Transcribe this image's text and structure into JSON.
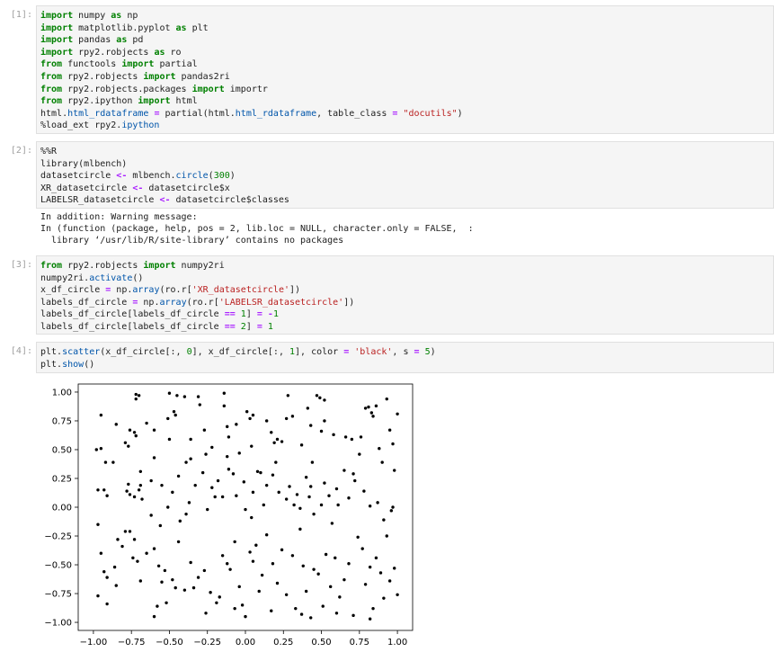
{
  "cells": [
    {
      "prompt": "[1]:",
      "lines": [
        [
          [
            "kw",
            "import"
          ],
          [
            "t",
            " numpy "
          ],
          [
            "kw",
            "as"
          ],
          [
            "t",
            " np"
          ]
        ],
        [
          [
            "kw",
            "import"
          ],
          [
            "t",
            " matplotlib.pyplot "
          ],
          [
            "kw",
            "as"
          ],
          [
            "t",
            " plt"
          ]
        ],
        [
          [
            "kw",
            "import"
          ],
          [
            "t",
            " pandas "
          ],
          [
            "kw",
            "as"
          ],
          [
            "t",
            " pd"
          ]
        ],
        [
          [
            "kw",
            "import"
          ],
          [
            "t",
            " rpy2.robjects "
          ],
          [
            "kw",
            "as"
          ],
          [
            "t",
            " ro"
          ]
        ],
        [
          [
            "kw",
            "from"
          ],
          [
            "t",
            " functools "
          ],
          [
            "kw",
            "import"
          ],
          [
            "t",
            " partial"
          ]
        ],
        [
          [
            "kw",
            "from"
          ],
          [
            "t",
            " rpy2.robjects "
          ],
          [
            "kw",
            "import"
          ],
          [
            "t",
            " pandas2ri"
          ]
        ],
        [
          [
            "kw",
            "from"
          ],
          [
            "t",
            " rpy2.robjects.packages "
          ],
          [
            "kw",
            "import"
          ],
          [
            "t",
            " importr"
          ]
        ],
        [
          [
            "kw",
            "from"
          ],
          [
            "t",
            " rpy2.ipython "
          ],
          [
            "kw",
            "import"
          ],
          [
            "t",
            " html"
          ]
        ],
        [
          [
            "t",
            "html."
          ],
          [
            "fn",
            "html_rdataframe"
          ],
          [
            "t",
            " "
          ],
          [
            "op",
            "="
          ],
          [
            "t",
            " partial(html."
          ],
          [
            "fn",
            "html_rdataframe"
          ],
          [
            "t",
            ", table_class "
          ],
          [
            "op",
            "="
          ],
          [
            "t",
            " "
          ],
          [
            "str",
            "\"docutils\""
          ],
          [
            "t",
            ")"
          ]
        ],
        [
          [
            "t",
            "%load_ext rpy2."
          ],
          [
            "fn",
            "ipython"
          ]
        ]
      ]
    },
    {
      "prompt": "[2]:",
      "lines": [
        [
          [
            "t",
            "%%R"
          ]
        ],
        [
          [
            "t",
            "library(mlbench)"
          ]
        ],
        [
          [
            "t",
            "datasetcircle "
          ],
          [
            "op",
            "<-"
          ],
          [
            "t",
            " mlbench."
          ],
          [
            "fn",
            "circle"
          ],
          [
            "t",
            "("
          ],
          [
            "num",
            "300"
          ],
          [
            "t",
            ")"
          ]
        ],
        [
          [
            "t",
            "XR_datasetcircle "
          ],
          [
            "op",
            "<-"
          ],
          [
            "t",
            " datasetcircle$x"
          ]
        ],
        [
          [
            "t",
            "LABELSR_datasetcircle "
          ],
          [
            "op",
            "<-"
          ],
          [
            "t",
            " datasetcircle$classes"
          ]
        ]
      ],
      "output": [
        "In addition: Warning message:",
        "In (function (package, help, pos = 2, lib.loc = NULL, character.only = FALSE,  :",
        "  library ‘/usr/lib/R/site-library’ contains no packages"
      ]
    },
    {
      "prompt": "[3]:",
      "lines": [
        [
          [
            "kw",
            "from"
          ],
          [
            "t",
            " rpy2.robjects "
          ],
          [
            "kw",
            "import"
          ],
          [
            "t",
            " numpy2ri"
          ]
        ],
        [
          [
            "t",
            "numpy2ri."
          ],
          [
            "fn",
            "activate"
          ],
          [
            "t",
            "()"
          ]
        ],
        [
          [
            "t",
            "x_df_circle "
          ],
          [
            "op",
            "="
          ],
          [
            "t",
            " np."
          ],
          [
            "fn",
            "array"
          ],
          [
            "t",
            "(ro.r["
          ],
          [
            "str",
            "'XR_datasetcircle'"
          ],
          [
            "t",
            "])"
          ]
        ],
        [
          [
            "t",
            "labels_df_circle "
          ],
          [
            "op",
            "="
          ],
          [
            "t",
            " np."
          ],
          [
            "fn",
            "array"
          ],
          [
            "t",
            "(ro.r["
          ],
          [
            "str",
            "'LABELSR_datasetcircle'"
          ],
          [
            "t",
            "])"
          ]
        ],
        [
          [
            "t",
            "labels_df_circle[labels_df_circle "
          ],
          [
            "op",
            "=="
          ],
          [
            "t",
            " "
          ],
          [
            "num",
            "1"
          ],
          [
            "t",
            "] "
          ],
          [
            "op",
            "="
          ],
          [
            "t",
            " "
          ],
          [
            "op",
            "-"
          ],
          [
            "num",
            "1"
          ]
        ],
        [
          [
            "t",
            "labels_df_circle[labels_df_circle "
          ],
          [
            "op",
            "=="
          ],
          [
            "t",
            " "
          ],
          [
            "num",
            "2"
          ],
          [
            "t",
            "] "
          ],
          [
            "op",
            "="
          ],
          [
            "t",
            " "
          ],
          [
            "num",
            "1"
          ]
        ]
      ]
    },
    {
      "prompt": "[4]:",
      "lines": [
        [
          [
            "t",
            "plt."
          ],
          [
            "fn",
            "scatter"
          ],
          [
            "t",
            "(x_df_circle[:, "
          ],
          [
            "num",
            "0"
          ],
          [
            "t",
            "], x_df_circle[:, "
          ],
          [
            "num",
            "1"
          ],
          [
            "t",
            "], color "
          ],
          [
            "op",
            "="
          ],
          [
            "t",
            " "
          ],
          [
            "str",
            "'black'"
          ],
          [
            "t",
            ", s "
          ],
          [
            "op",
            "="
          ],
          [
            "t",
            " "
          ],
          [
            "num",
            "5"
          ],
          [
            "t",
            ")"
          ]
        ],
        [
          [
            "t",
            "plt."
          ],
          [
            "fn",
            "show"
          ],
          [
            "t",
            "()"
          ]
        ]
      ]
    }
  ],
  "chart_data": {
    "type": "scatter",
    "xlim": [
      -1.1,
      1.1
    ],
    "ylim": [
      -1.07,
      1.07
    ],
    "xticks": [
      "−1.00",
      "−0.75",
      "−0.50",
      "−0.25",
      "0.00",
      "0.25",
      "0.50",
      "0.75",
      "1.00"
    ],
    "yticks": [
      "1.00",
      "0.75",
      "0.50",
      "0.25",
      "0.00",
      "−0.25",
      "−0.50",
      "−0.75",
      "−1.00"
    ],
    "color": "#000000",
    "points": [
      [
        -0.72,
        0.98
      ],
      [
        -0.7,
        0.97
      ],
      [
        -0.72,
        0.94
      ],
      [
        -0.5,
        0.99
      ],
      [
        -0.45,
        0.97
      ],
      [
        -0.4,
        0.96
      ],
      [
        -0.31,
        0.96
      ],
      [
        -0.14,
        0.99
      ],
      [
        0.01,
        0.83
      ],
      [
        0.05,
        0.8
      ],
      [
        0.28,
        0.97
      ],
      [
        0.47,
        0.97
      ],
      [
        0.49,
        0.95
      ],
      [
        0.52,
        0.93
      ],
      [
        0.93,
        0.94
      ],
      [
        -0.95,
        0.8
      ],
      [
        -0.98,
        0.5
      ],
      [
        -0.95,
        0.51
      ],
      [
        -0.92,
        0.39
      ],
      [
        -0.87,
        0.39
      ],
      [
        -0.85,
        0.72
      ],
      [
        -0.79,
        0.56
      ],
      [
        -0.77,
        0.53
      ],
      [
        -0.76,
        0.67
      ],
      [
        -0.73,
        0.65
      ],
      [
        -0.72,
        0.62
      ],
      [
        -0.65,
        0.73
      ],
      [
        -0.6,
        0.67
      ],
      [
        -0.51,
        0.77
      ],
      [
        -0.47,
        0.83
      ],
      [
        -0.46,
        0.8
      ],
      [
        -0.5,
        0.59
      ],
      [
        -0.36,
        0.59
      ],
      [
        -0.39,
        0.39
      ],
      [
        -0.3,
        0.89
      ],
      [
        -0.27,
        0.67
      ],
      [
        -0.22,
        0.52
      ],
      [
        -0.14,
        0.88
      ],
      [
        -0.12,
        0.7
      ],
      [
        -0.11,
        0.61
      ],
      [
        -0.06,
        0.72
      ],
      [
        -0.12,
        0.44
      ],
      [
        -0.04,
        0.47
      ],
      [
        0.03,
        0.77
      ],
      [
        0.04,
        0.53
      ],
      [
        0.08,
        0.31
      ],
      [
        0.14,
        0.75
      ],
      [
        0.17,
        0.65
      ],
      [
        0.19,
        0.56
      ],
      [
        0.21,
        0.59
      ],
      [
        0.24,
        0.57
      ],
      [
        0.27,
        0.77
      ],
      [
        0.31,
        0.79
      ],
      [
        0.37,
        0.54
      ],
      [
        0.41,
        0.86
      ],
      [
        0.43,
        0.71
      ],
      [
        0.44,
        0.39
      ],
      [
        0.5,
        0.66
      ],
      [
        0.52,
        0.75
      ],
      [
        0.58,
        0.63
      ],
      [
        0.66,
        0.61
      ],
      [
        0.7,
        0.59
      ],
      [
        0.75,
        0.46
      ],
      [
        0.76,
        0.61
      ],
      [
        0.79,
        0.86
      ],
      [
        0.81,
        0.87
      ],
      [
        0.83,
        0.82
      ],
      [
        0.84,
        0.79
      ],
      [
        0.86,
        0.88
      ],
      [
        0.88,
        0.51
      ],
      [
        0.9,
        0.39
      ],
      [
        0.95,
        0.67
      ],
      [
        0.97,
        0.55
      ],
      [
        0.98,
        0.32
      ],
      [
        1.0,
        0.81
      ],
      [
        -0.97,
        0.15
      ],
      [
        -0.93,
        0.15
      ],
      [
        -0.91,
        0.1
      ],
      [
        -0.78,
        0.14
      ],
      [
        -0.77,
        0.2
      ],
      [
        -0.76,
        0.11
      ],
      [
        -0.73,
        0.09
      ],
      [
        -0.7,
        0.15
      ],
      [
        -0.69,
        0.19
      ],
      [
        -0.68,
        0.07
      ],
      [
        -0.69,
        0.31
      ],
      [
        -0.62,
        0.23
      ],
      [
        -0.6,
        0.43
      ],
      [
        -0.55,
        0.19
      ],
      [
        -0.51,
        0.0
      ],
      [
        -0.48,
        0.13
      ],
      [
        -0.44,
        0.27
      ],
      [
        -0.39,
        -0.06
      ],
      [
        -0.37,
        0.04
      ],
      [
        -0.33,
        0.19
      ],
      [
        -0.28,
        0.3
      ],
      [
        -0.25,
        -0.02
      ],
      [
        -0.22,
        0.17
      ],
      [
        -0.18,
        0.23
      ],
      [
        -0.15,
        0.09
      ],
      [
        -0.11,
        0.33
      ],
      [
        -0.06,
        0.1
      ],
      [
        -0.01,
        0.22
      ],
      [
        0.0,
        -0.02
      ],
      [
        0.04,
        -0.09
      ],
      [
        0.1,
        0.3
      ],
      [
        0.14,
        0.19
      ],
      [
        0.18,
        0.28
      ],
      [
        0.22,
        0.13
      ],
      [
        0.27,
        0.07
      ],
      [
        0.32,
        0.02
      ],
      [
        0.34,
        0.11
      ],
      [
        0.4,
        0.26
      ],
      [
        0.43,
        0.18
      ],
      [
        0.45,
        -0.06
      ],
      [
        0.5,
        0.02
      ],
      [
        0.55,
        0.1
      ],
      [
        0.57,
        -0.14
      ],
      [
        0.61,
        0.02
      ],
      [
        0.65,
        0.32
      ],
      [
        0.71,
        0.29
      ],
      [
        0.72,
        0.23
      ],
      [
        0.78,
        0.14
      ],
      [
        0.82,
        0.01
      ],
      [
        0.87,
        0.04
      ],
      [
        0.91,
        -0.11
      ],
      [
        0.96,
        -0.03
      ],
      [
        0.97,
        0.0
      ],
      [
        -0.97,
        -0.15
      ],
      [
        -0.95,
        -0.4
      ],
      [
        -0.93,
        -0.56
      ],
      [
        -0.91,
        -0.61
      ],
      [
        -0.86,
        -0.52
      ],
      [
        -0.85,
        -0.68
      ],
      [
        -0.84,
        -0.28
      ],
      [
        -0.81,
        -0.34
      ],
      [
        -0.79,
        -0.21
      ],
      [
        -0.76,
        -0.21
      ],
      [
        -0.74,
        -0.44
      ],
      [
        -0.73,
        -0.28
      ],
      [
        -0.71,
        -0.47
      ],
      [
        -0.69,
        -0.64
      ],
      [
        -0.65,
        -0.4
      ],
      [
        -0.6,
        -0.36
      ],
      [
        -0.57,
        -0.51
      ],
      [
        -0.55,
        -0.65
      ],
      [
        -0.53,
        -0.55
      ],
      [
        -0.52,
        -0.83
      ],
      [
        -0.48,
        -0.63
      ],
      [
        -0.44,
        -0.3
      ],
      [
        -0.4,
        -0.72
      ],
      [
        -0.36,
        -0.48
      ],
      [
        -0.34,
        -0.7
      ],
      [
        -0.31,
        -0.61
      ],
      [
        -0.27,
        -0.55
      ],
      [
        -0.23,
        -0.74
      ],
      [
        -0.19,
        -0.83
      ],
      [
        -0.17,
        -0.78
      ],
      [
        -0.15,
        -0.42
      ],
      [
        -0.12,
        -0.49
      ],
      [
        -0.1,
        -0.54
      ],
      [
        -0.07,
        -0.3
      ],
      [
        -0.04,
        -0.69
      ],
      [
        -0.02,
        -0.85
      ],
      [
        0.0,
        -0.95
      ],
      [
        0.03,
        -0.39
      ],
      [
        0.05,
        -0.47
      ],
      [
        0.07,
        -0.33
      ],
      [
        0.09,
        -0.73
      ],
      [
        0.11,
        -0.59
      ],
      [
        0.14,
        -0.24
      ],
      [
        0.18,
        -0.49
      ],
      [
        0.21,
        -0.66
      ],
      [
        0.24,
        -0.37
      ],
      [
        0.27,
        -0.76
      ],
      [
        0.31,
        -0.42
      ],
      [
        0.33,
        -0.88
      ],
      [
        0.36,
        -0.19
      ],
      [
        0.38,
        -0.51
      ],
      [
        0.4,
        -0.73
      ],
      [
        0.43,
        -0.96
      ],
      [
        0.45,
        -0.54
      ],
      [
        0.48,
        -0.58
      ],
      [
        0.51,
        -0.86
      ],
      [
        0.53,
        -0.41
      ],
      [
        0.56,
        -0.69
      ],
      [
        0.59,
        -0.44
      ],
      [
        0.62,
        -0.78
      ],
      [
        0.65,
        -0.63
      ],
      [
        0.68,
        -0.49
      ],
      [
        0.71,
        -0.94
      ],
      [
        0.74,
        -0.26
      ],
      [
        0.77,
        -0.36
      ],
      [
        0.79,
        -0.67
      ],
      [
        0.82,
        -0.52
      ],
      [
        0.84,
        -0.88
      ],
      [
        0.86,
        -0.44
      ],
      [
        0.89,
        -0.57
      ],
      [
        0.91,
        -0.79
      ],
      [
        0.93,
        -0.25
      ],
      [
        0.95,
        -0.64
      ],
      [
        0.98,
        -0.53
      ],
      [
        1.0,
        -0.76
      ],
      [
        -0.97,
        -0.77
      ],
      [
        -0.91,
        -0.84
      ],
      [
        -0.6,
        -0.95
      ],
      [
        -0.58,
        -0.86
      ],
      [
        -0.46,
        -0.7
      ],
      [
        -0.26,
        -0.92
      ],
      [
        -0.07,
        -0.88
      ],
      [
        0.17,
        -0.9
      ],
      [
        0.37,
        -0.93
      ],
      [
        0.6,
        -0.92
      ],
      [
        0.82,
        -0.97
      ],
      [
        -0.62,
        -0.07
      ],
      [
        -0.56,
        -0.16
      ],
      [
        -0.43,
        -0.12
      ],
      [
        -0.36,
        0.42
      ],
      [
        -0.26,
        0.46
      ],
      [
        -0.2,
        0.09
      ],
      [
        -0.08,
        0.29
      ],
      [
        0.05,
        0.13
      ],
      [
        0.12,
        0.02
      ],
      [
        0.2,
        0.39
      ],
      [
        0.29,
        0.18
      ],
      [
        0.36,
        -0.01
      ],
      [
        0.42,
        0.09
      ],
      [
        0.52,
        0.21
      ],
      [
        0.6,
        0.16
      ],
      [
        0.68,
        0.08
      ]
    ]
  }
}
